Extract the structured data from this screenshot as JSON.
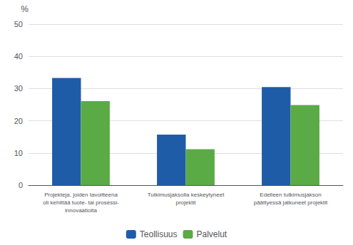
{
  "chart_data": {
    "type": "bar",
    "categories": [
      "Projekteja, joiden tavoitteena\noli kehittää tuote- tai prosessi-\ninnovaatioita",
      "Tutkimusjaksolla keskeytyneet\nprojektit",
      "Edelleen tutkimusjakson\npäättyessä jatkuneet projektit"
    ],
    "series": [
      {
        "name": "Teollisuus",
        "color": "#1f5ca8",
        "values": [
          33.3,
          15.7,
          30.5
        ]
      },
      {
        "name": "Palvelut",
        "color": "#5aaa46",
        "values": [
          26.1,
          11.2,
          24.9
        ]
      }
    ],
    "ylabel": "%",
    "ylim": [
      0,
      50
    ],
    "yticks": [
      0,
      10,
      20,
      30,
      40,
      50
    ],
    "grid": true,
    "legend": "bottom"
  }
}
